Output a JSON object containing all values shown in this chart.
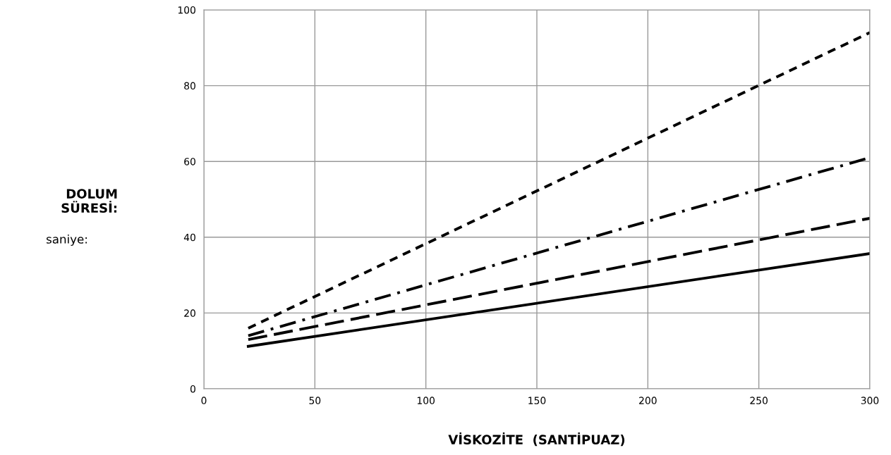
{
  "chart_data": {
    "type": "line",
    "xlabel": "VİSKOZİTE  (SANTİPUAZ)",
    "ylabel": "DOLUM\nSÜRESİ:",
    "annotations": [
      "saniye:"
    ],
    "x": [
      20,
      300
    ],
    "xlim": [
      0,
      300
    ],
    "ylim": [
      0,
      100
    ],
    "xticks": [
      0,
      50,
      100,
      150,
      200,
      250,
      300
    ],
    "yticks": [
      0,
      20,
      40,
      60,
      80,
      100
    ],
    "grid": true,
    "legend": false,
    "marker": "none",
    "series": [
      {
        "color": "#000000",
        "line_style": "dashed",
        "values": [
          16,
          94
        ]
      },
      {
        "color": "#000000",
        "line_style": "dashdot",
        "values": [
          14,
          61
        ]
      },
      {
        "color": "#000000",
        "line_style": "longdash",
        "values": [
          13,
          45
        ]
      },
      {
        "color": "#000000",
        "line_style": "solid",
        "values": [
          11.2,
          35.7
        ]
      }
    ]
  }
}
